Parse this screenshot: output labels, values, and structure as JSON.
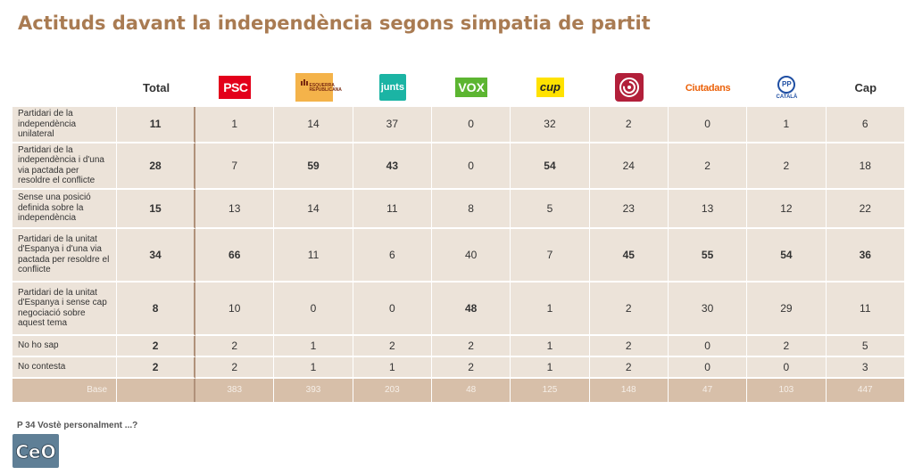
{
  "title": "Actituds davant la independència segons simpatia de partit",
  "chart_data": {
    "type": "table",
    "title": "Actituds davant la independència segons simpatia de partit",
    "columns": [
      "Total",
      "PSC",
      "ERC",
      "Junts",
      "VOX",
      "CUP",
      "Comuns",
      "Ciutadans",
      "PP",
      "Cap"
    ],
    "logo_text": {
      "psc": "PSC",
      "erc": "ESQUERRA REPUBLICANA",
      "junts": "junts",
      "vox": "VOX",
      "cup": "cup",
      "ciutadans": "Ciutadans",
      "pp": "PP",
      "pp_sub": "CATALÀ",
      "cap": "Cap",
      "total": "Total"
    },
    "rows": [
      {
        "label": "Partidari de la independència unilateral",
        "values": [
          11,
          1,
          14,
          37,
          0,
          32,
          2,
          0,
          1,
          6
        ],
        "bold": [
          true,
          false,
          false,
          false,
          false,
          false,
          false,
          false,
          false,
          false
        ]
      },
      {
        "label": "Partidari de la independència i d'una via pactada per resoldre el conflicte",
        "values": [
          28,
          7,
          59,
          43,
          0,
          54,
          24,
          2,
          2,
          18
        ],
        "bold": [
          true,
          false,
          true,
          true,
          false,
          true,
          false,
          false,
          false,
          false
        ]
      },
      {
        "label": "Sense una posició definida sobre la independència",
        "values": [
          15,
          13,
          14,
          11,
          8,
          5,
          23,
          13,
          12,
          22
        ],
        "bold": [
          true,
          false,
          false,
          false,
          false,
          false,
          false,
          false,
          false,
          false
        ]
      },
      {
        "label": "Partidari de la unitat d'Espanya i d'una via pactada per resoldre el conflicte",
        "values": [
          34,
          66,
          11,
          6,
          40,
          7,
          45,
          55,
          54,
          36
        ],
        "bold": [
          true,
          true,
          false,
          false,
          false,
          false,
          true,
          true,
          true,
          true
        ]
      },
      {
        "label": "Partidari de la unitat d'Espanya i sense cap negociació sobre aquest tema",
        "values": [
          8,
          10,
          0,
          0,
          48,
          1,
          2,
          30,
          29,
          11
        ],
        "bold": [
          true,
          false,
          false,
          false,
          true,
          false,
          false,
          false,
          false,
          false
        ]
      },
      {
        "label": "No ho sap",
        "values": [
          2,
          2,
          1,
          2,
          2,
          1,
          2,
          0,
          2,
          5
        ],
        "bold": [
          true,
          false,
          false,
          false,
          false,
          false,
          false,
          false,
          false,
          false
        ]
      },
      {
        "label": "No contesta",
        "values": [
          2,
          2,
          1,
          1,
          2,
          1,
          2,
          0,
          0,
          3
        ],
        "bold": [
          true,
          false,
          false,
          false,
          false,
          false,
          false,
          false,
          false,
          false
        ]
      }
    ],
    "base": {
      "label": "Base",
      "values": [
        "",
        383,
        393,
        203,
        48,
        125,
        148,
        47,
        103,
        447
      ]
    }
  },
  "footnote": "P 34 Vostè personalment ...?",
  "brand": "CeO",
  "colors": {
    "title": "#a97b52",
    "cell": "#ece3d9",
    "base": "#d7bfa9",
    "divider": "#b0917a"
  }
}
